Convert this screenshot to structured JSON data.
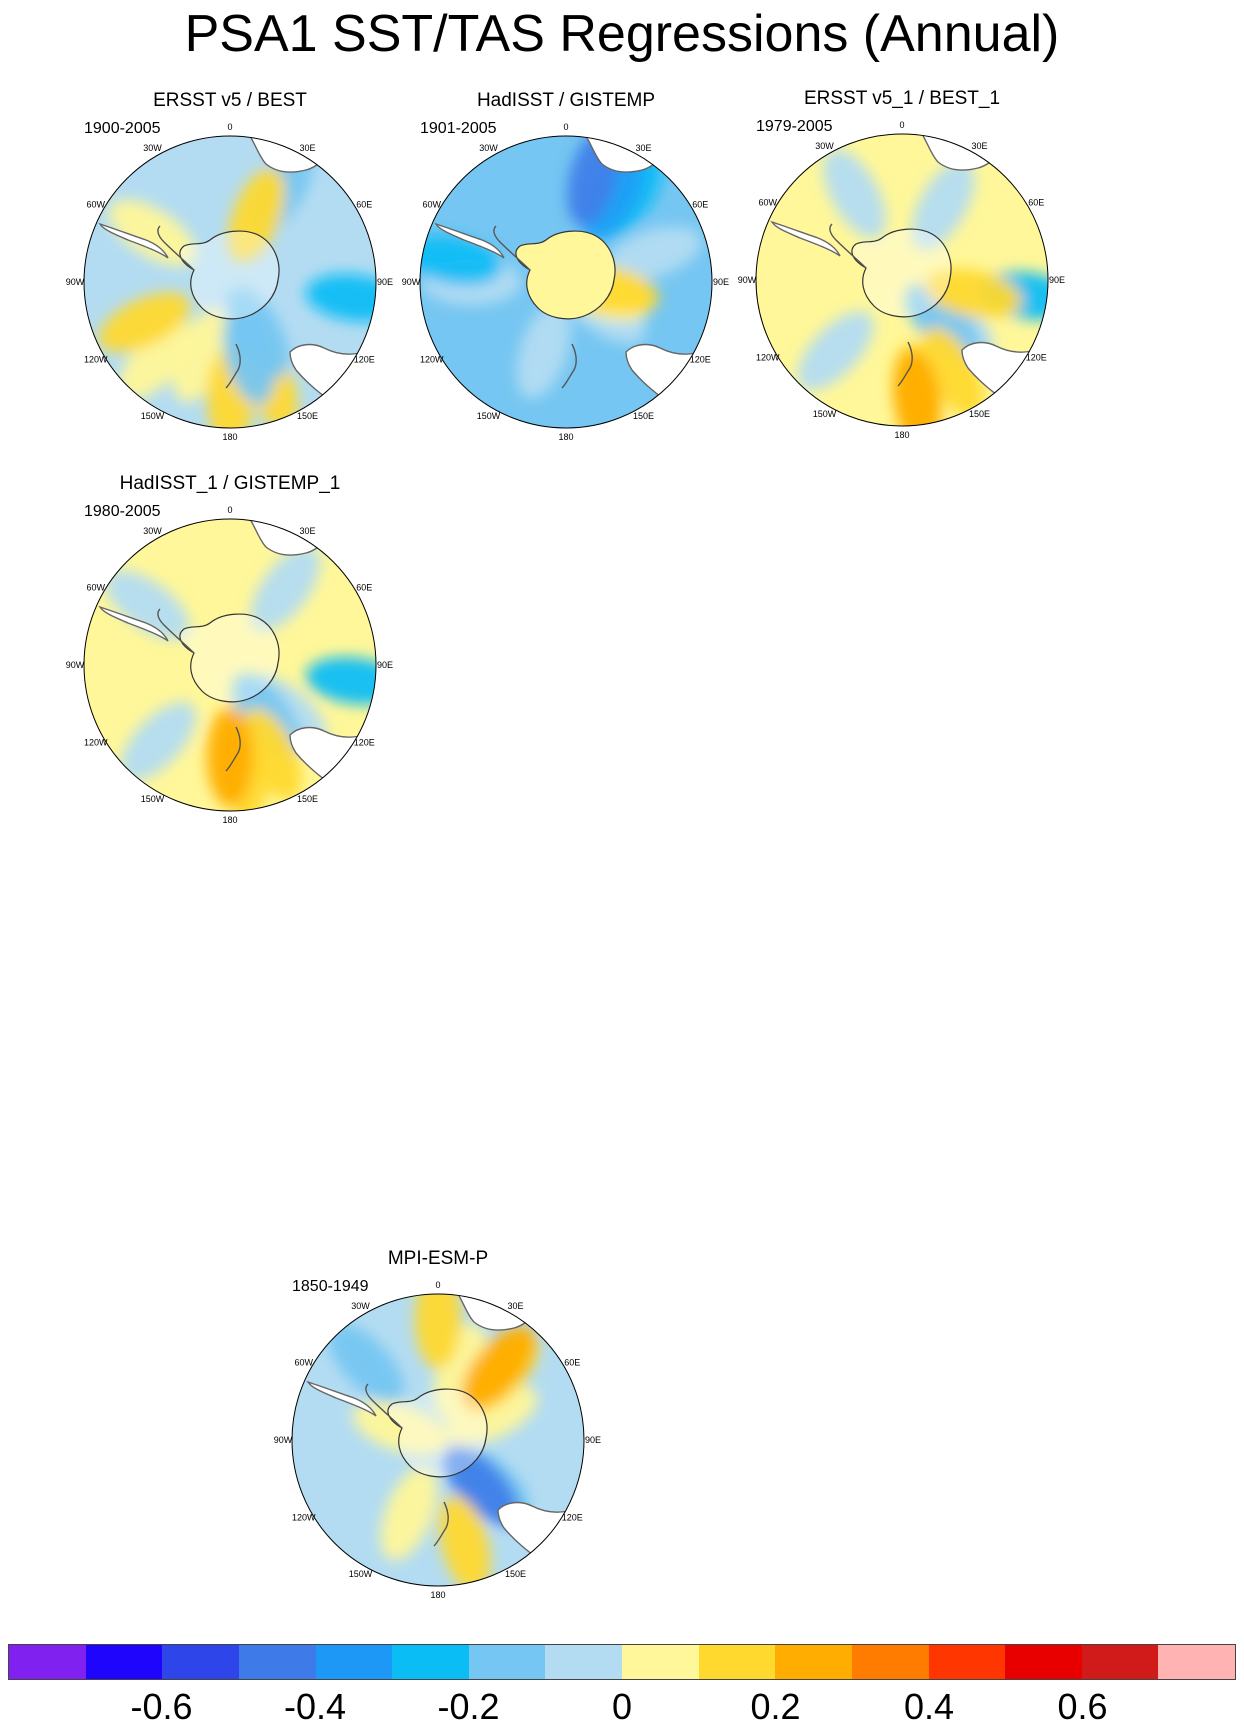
{
  "title": "PSA1 SST/TAS Regressions (Annual)",
  "lon_labels": [
    "0",
    "30E",
    "60E",
    "90E",
    "120E",
    "150E",
    "180",
    "150W",
    "120W",
    "90W",
    "60W",
    "30W"
  ],
  "panels": [
    {
      "title": "ERSST v5 / BEST",
      "period": "1900-2005",
      "base": "#b3dcf2",
      "blobs": [
        {
          "c": "#fff799",
          "t": 0.62,
          "d": 0.82
        },
        {
          "c": "#fff799",
          "t": 0.56,
          "d": 0.6
        },
        {
          "c": "#fff799",
          "t": 0.84,
          "d": 0.7
        },
        {
          "c": "#ffd92e",
          "t": 0.68,
          "d": 0.72
        },
        {
          "c": "#ffd92e",
          "t": 0.5,
          "d": 0.88
        },
        {
          "c": "#ffd92e",
          "t": 0.44,
          "d": 0.82
        },
        {
          "c": "#75c6f2",
          "t": 0.42,
          "d": 0.44
        },
        {
          "c": "#75c6f2",
          "t": 0.46,
          "d": 0.58
        },
        {
          "c": "#75c6f2",
          "t": 0.08,
          "d": 0.82
        },
        {
          "c": "#0bbdf5",
          "t": 0.27,
          "d": 0.96
        },
        {
          "c": "#ffd92e",
          "t": 0.06,
          "d": 0.55
        }
      ]
    },
    {
      "title": "HadISST / GISTEMP",
      "period": "1901-2005",
      "base": "#75c6f2",
      "blobs": [
        {
          "c": "#b3dcf2",
          "t": 0.35,
          "d": 0.35
        },
        {
          "c": "#b3dcf2",
          "t": 0.55,
          "d": 0.55
        },
        {
          "c": "#b3dcf2",
          "t": 0.75,
          "d": 0.72
        },
        {
          "c": "#b3dcf2",
          "t": 0.2,
          "d": 0.7
        },
        {
          "c": "#0bbdf5",
          "t": 0.1,
          "d": 0.8
        },
        {
          "c": "#1ea0f7",
          "t": 0.08,
          "d": 0.75
        },
        {
          "c": "#3f7fe9",
          "t": 0.04,
          "d": 0.82
        },
        {
          "c": "#fff799",
          "t": 0.3,
          "d": 0.3
        },
        {
          "c": "#ffd92e",
          "t": 0.28,
          "d": 0.34
        },
        {
          "c": "#0bbdf5",
          "t": 0.78,
          "d": 0.88
        }
      ]
    },
    {
      "title": "ERSST v5_1 / BEST_1",
      "period": "1979-2005",
      "base": "#fff799",
      "blobs": [
        {
          "c": "#b3dcf2",
          "t": 0.08,
          "d": 0.65
        },
        {
          "c": "#b3dcf2",
          "t": 0.92,
          "d": 0.75
        },
        {
          "c": "#b3dcf2",
          "t": 0.36,
          "d": 0.5
        },
        {
          "c": "#75c6f2",
          "t": 0.38,
          "d": 0.46
        },
        {
          "c": "#b3dcf2",
          "t": 0.62,
          "d": 0.74
        },
        {
          "c": "#ffd92e",
          "t": 0.48,
          "d": 0.86
        },
        {
          "c": "#ffd92e",
          "t": 0.42,
          "d": 0.8
        },
        {
          "c": "#ffad00",
          "t": 0.48,
          "d": 0.92
        },
        {
          "c": "#0bbdf5",
          "t": 0.27,
          "d": 0.96
        },
        {
          "c": "#ffd92e",
          "t": 0.28,
          "d": 0.55
        }
      ]
    },
    {
      "title": "HadISST_1 / GISTEMP_1",
      "period": "1980-2005",
      "base": "#fff799",
      "blobs": [
        {
          "c": "#b3dcf2",
          "t": 0.1,
          "d": 0.72
        },
        {
          "c": "#b3dcf2",
          "t": 0.85,
          "d": 0.78
        },
        {
          "c": "#b3dcf2",
          "t": 0.36,
          "d": 0.55
        },
        {
          "c": "#75c6f2",
          "t": 0.4,
          "d": 0.48
        },
        {
          "c": "#b3dcf2",
          "t": 0.62,
          "d": 0.8
        },
        {
          "c": "#ffd92e",
          "t": 0.48,
          "d": 0.82
        },
        {
          "c": "#ffd92e",
          "t": 0.43,
          "d": 0.75
        },
        {
          "c": "#ffad00",
          "t": 0.5,
          "d": 0.7
        },
        {
          "c": "#0bbdf5",
          "t": 0.27,
          "d": 0.96
        }
      ]
    },
    {
      "title": "MPI-ESM-P",
      "period": "1850-1949",
      "base": "#b3dcf2",
      "blobs": [
        {
          "c": "#fff799",
          "t": 0.05,
          "d": 0.55
        },
        {
          "c": "#fff799",
          "t": 0.18,
          "d": 0.45
        },
        {
          "c": "#ffd92e",
          "t": 0.12,
          "d": 0.7
        },
        {
          "c": "#ffad00",
          "t": 0.11,
          "d": 0.72
        },
        {
          "c": "#ffd92e",
          "t": 0.0,
          "d": 0.92
        },
        {
          "c": "#75c6f2",
          "t": 0.36,
          "d": 0.5
        },
        {
          "c": "#3f7fe9",
          "t": 0.38,
          "d": 0.48
        },
        {
          "c": "#ffd92e",
          "t": 0.46,
          "d": 0.82
        },
        {
          "c": "#fff799",
          "t": 0.56,
          "d": 0.6
        },
        {
          "c": "#fff799",
          "t": 0.8,
          "d": 0.3
        },
        {
          "c": "#75c6f2",
          "t": 0.88,
          "d": 0.8
        }
      ]
    }
  ],
  "colorbar": {
    "colors": [
      "#8021f0",
      "#1f05fb",
      "#2d45e9",
      "#3e7ae8",
      "#1e98f7",
      "#0bbdf5",
      "#75c6f2",
      "#b3dcf2",
      "#fff799",
      "#ffd92e",
      "#ffad00",
      "#ff7c00",
      "#ff3600",
      "#e80000",
      "#d11a1a",
      "#ffb3b3"
    ],
    "labels": [
      {
        "text": "-0.6",
        "boundary": 2
      },
      {
        "text": "-0.4",
        "boundary": 4
      },
      {
        "text": "-0.2",
        "boundary": 6
      },
      {
        "text": "0",
        "boundary": 8
      },
      {
        "text": "0.2",
        "boundary": 10
      },
      {
        "text": "0.4",
        "boundary": 12
      },
      {
        "text": "0.6",
        "boundary": 14
      }
    ]
  }
}
